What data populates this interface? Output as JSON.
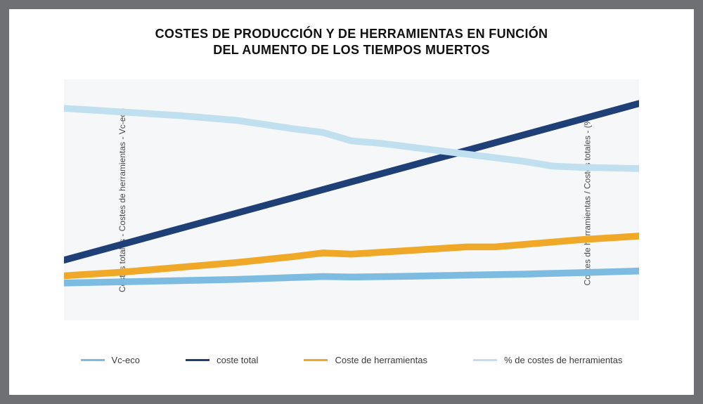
{
  "title_line1": "COSTES DE PRODUCCIÓN Y DE HERRAMIENTAS EN FUNCIÓN",
  "title_line2": "DEL AUMENTO DE LOS TIEMPOS MUERTOS",
  "axis_left_label": "Costes totales - Costes de herramientas - Vc-eco",
  "axis_right_label": "Costes de herramientas / Costes totales - (%)",
  "chart": {
    "type": "line",
    "background_color": "#f6f7f8",
    "card_background": "#ffffff",
    "page_border_color": "#6e7074",
    "x_domain": [
      0,
      100
    ],
    "y_domain": [
      0,
      100
    ],
    "line_width": 3,
    "grid": "off",
    "series": [
      {
        "id": "vc_eco",
        "label": "Vc-eco",
        "color": "#7dbbe0",
        "points": [
          [
            0,
            15.5
          ],
          [
            10,
            16
          ],
          [
            20,
            16.5
          ],
          [
            30,
            17
          ],
          [
            40,
            17.8
          ],
          [
            45,
            18.2
          ],
          [
            50,
            18
          ],
          [
            60,
            18.3
          ],
          [
            70,
            18.8
          ],
          [
            80,
            19.2
          ],
          [
            90,
            19.8
          ],
          [
            100,
            20.5
          ]
        ]
      },
      {
        "id": "coste_total",
        "label": "coste total",
        "color": "#1f3f77",
        "points": [
          [
            0,
            25
          ],
          [
            10,
            31.5
          ],
          [
            20,
            38
          ],
          [
            30,
            44.5
          ],
          [
            40,
            51
          ],
          [
            50,
            57.5
          ],
          [
            60,
            64
          ],
          [
            70,
            70.5
          ],
          [
            80,
            77
          ],
          [
            90,
            83.5
          ],
          [
            100,
            90
          ]
        ]
      },
      {
        "id": "coste_herramientas",
        "label": "Coste de herramientas",
        "color": "#f0a828",
        "points": [
          [
            0,
            18.5
          ],
          [
            10,
            20
          ],
          [
            20,
            22
          ],
          [
            30,
            24
          ],
          [
            40,
            26.5
          ],
          [
            45,
            28
          ],
          [
            50,
            27.5
          ],
          [
            60,
            29
          ],
          [
            70,
            30.5
          ],
          [
            75,
            30.5
          ],
          [
            80,
            31.5
          ],
          [
            85,
            32.5
          ],
          [
            90,
            33.5
          ],
          [
            100,
            35
          ]
        ]
      },
      {
        "id": "pct_costes_herramientas",
        "label": "% de costes de herramientas",
        "color": "#c0e0ef",
        "points": [
          [
            0,
            88
          ],
          [
            10,
            86.5
          ],
          [
            20,
            85
          ],
          [
            30,
            83
          ],
          [
            40,
            79.5
          ],
          [
            45,
            78
          ],
          [
            50,
            74.5
          ],
          [
            55,
            73.5
          ],
          [
            60,
            72
          ],
          [
            70,
            69
          ],
          [
            80,
            66
          ],
          [
            85,
            64
          ],
          [
            90,
            63.5
          ],
          [
            100,
            63
          ]
        ]
      }
    ]
  },
  "legend": {
    "items": [
      {
        "label": "Vc-eco",
        "color": "#7dbbe0"
      },
      {
        "label": "coste total",
        "color": "#1f3f77"
      },
      {
        "label": "Coste de herramientas",
        "color": "#f0a828"
      },
      {
        "label": "% de costes de herramientas",
        "color": "#c0e0ef"
      }
    ]
  }
}
